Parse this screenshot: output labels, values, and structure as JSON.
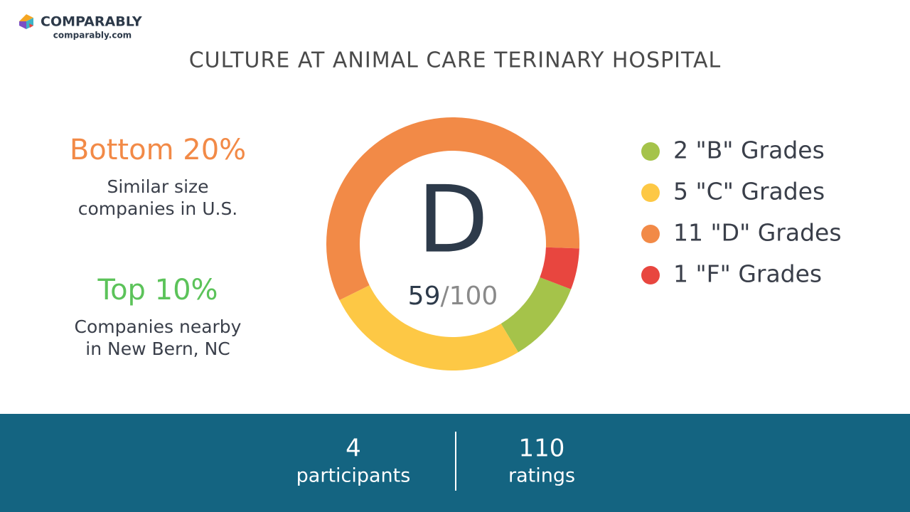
{
  "header": {
    "brand": "COMPARABLY",
    "site": "comparably.com"
  },
  "chart_data": {
    "type": "donut",
    "title": "CULTURE AT ANIMAL CARE TERINARY HOSPITAL",
    "grade": "D",
    "score": 59,
    "score_max": {
      "value": 100,
      "label": "/100"
    },
    "categories": [
      "2 \"B\" Grades",
      "5 \"C\" Grades",
      "11 \"D\" Grades",
      "1 \"F\" Grades"
    ],
    "values": [
      2,
      5,
      11,
      1
    ],
    "colors": [
      "#a5c34a",
      "#fdc845",
      "#f28a47",
      "#e8463f"
    ]
  },
  "rankings": [
    {
      "headline": "Bottom 20%",
      "color": "#f28a47",
      "detail_lines": [
        "Similar size",
        "companies in U.S."
      ]
    },
    {
      "headline": "Top 10%",
      "color": "#5cc35a",
      "detail_lines": [
        "Companies nearby",
        "in New Bern, NC"
      ]
    }
  ],
  "stats": [
    {
      "value": 4,
      "label": "participants"
    },
    {
      "value": 110,
      "label": "ratings"
    }
  ]
}
